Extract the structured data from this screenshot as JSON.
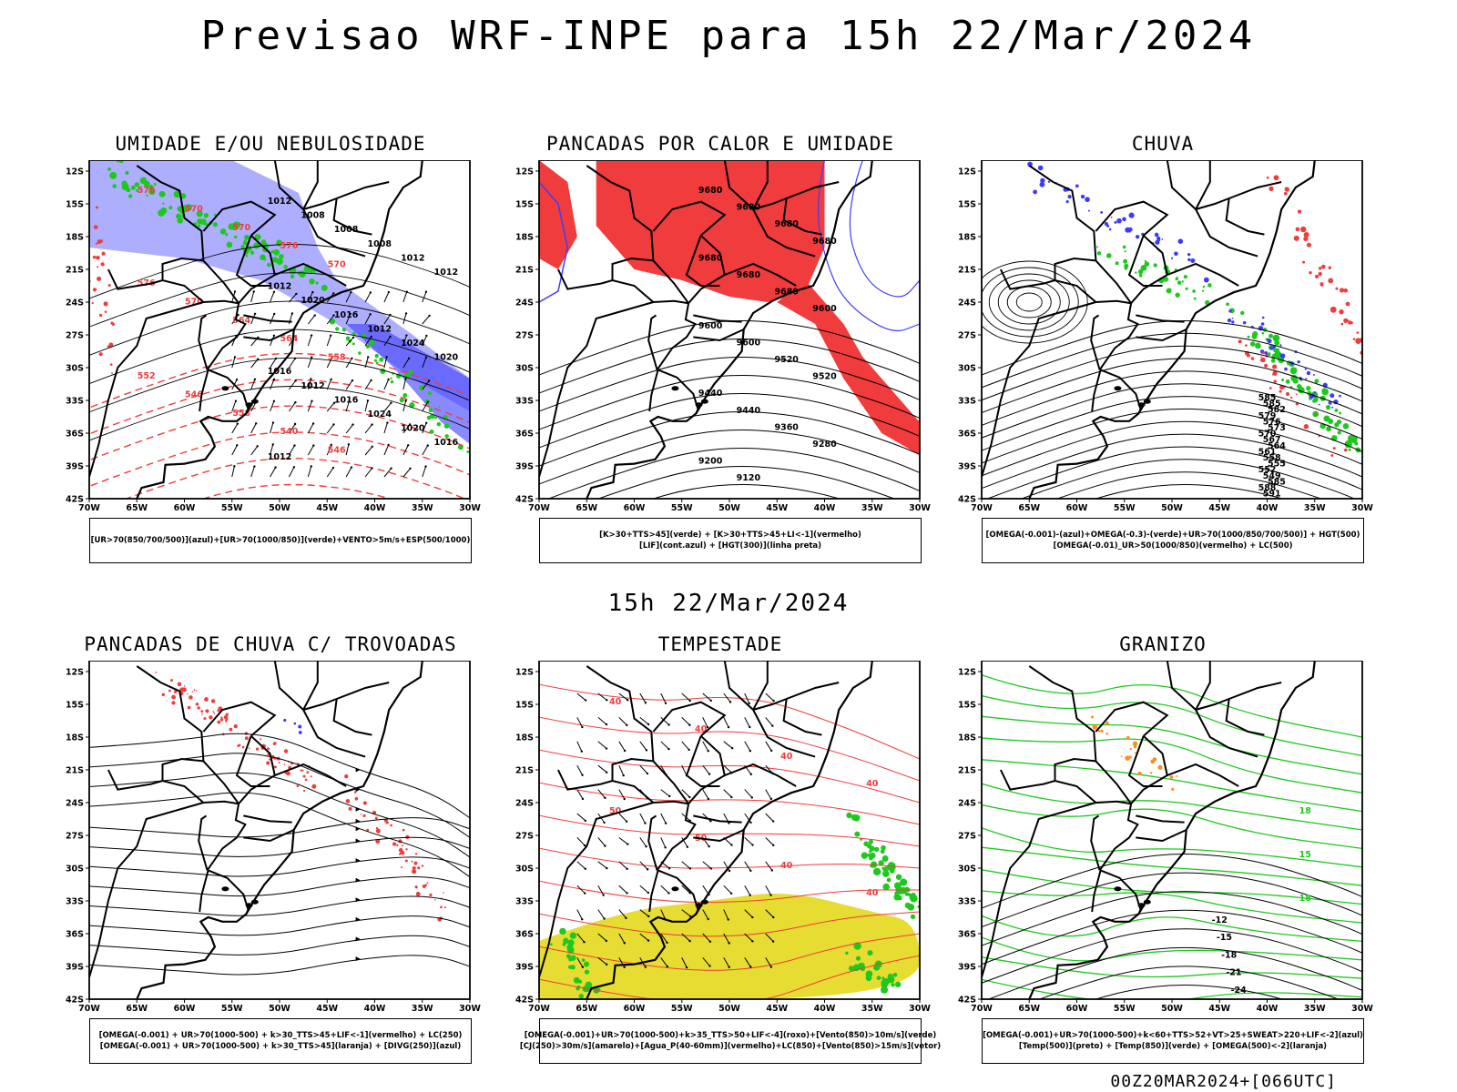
{
  "header": {
    "title": "Previsao WRF-INPE  para 15h 22/Mar/2024"
  },
  "mid_title": "15h 22/Mar/2024",
  "footer": "00Z20MAR2024+[066UTC]",
  "axes": {
    "lat": [
      "12S",
      "15S",
      "18S",
      "21S",
      "24S",
      "27S",
      "30S",
      "33S",
      "36S",
      "39S",
      "42S"
    ],
    "lon": [
      "70W",
      "65W",
      "60W",
      "55W",
      "50W",
      "45W",
      "40W",
      "35W",
      "30W"
    ]
  },
  "colors": {
    "red": "#f03c3c",
    "blue": "#3c3cff",
    "lavender": "#a0a0ff",
    "green": "#1ec81e",
    "yellow": "#e6dc32",
    "orange": "#ff8c1e",
    "dark_green": "#2e6e5a"
  },
  "panels": [
    {
      "title": "UMIDADE E/OU NEBULOSIDADE",
      "legend": [
        "[UR>70(850/700/500)](azul)+[UR>70(1000/850)](verde)+VENTO>5m/s+ESP(500/1000)"
      ],
      "contour_labels": [
        "1012",
        "1008",
        "1008",
        "1008",
        "1012",
        "1012",
        "1012",
        "1020",
        "1016",
        "1012",
        "1024",
        "1020",
        "1016",
        "1012",
        "1016",
        "1024",
        "1020",
        "1016",
        "1012"
      ],
      "red_labels": [
        "576",
        "570",
        "570",
        "576",
        "570",
        "576",
        "570",
        "564",
        "564",
        "558",
        "552",
        "546",
        "558",
        "540",
        "546"
      ]
    },
    {
      "title": "PANCADAS POR CALOR E UMIDADE",
      "legend": [
        "[K>30+TTS>45](verde) + [K>30+TTS>45+LI<-1](vermelho)",
        "[LIF](cont.azul) + [HGT(300)](linha preta)"
      ],
      "contour_labels": [
        "9680",
        "9680",
        "9680",
        "9680",
        "9680",
        "9680",
        "9680",
        "9600",
        "9600",
        "9600",
        "9520",
        "9520",
        "9440",
        "9440",
        "9360",
        "9280",
        "9200",
        "9120"
      ]
    },
    {
      "title": "CHUVA",
      "legend": [
        "[OMEGA(-0.001)-(azul)+OMEGA(-0.3)-(verde)+UR>70(1000/850/700/500)] + HGT(500)",
        "[OMEGA(-0.01)_UR>50(1000/850)(vermelho) + LC(500)"
      ],
      "contour_labels": [
        "585",
        "585",
        "582",
        "579",
        "576",
        "573",
        "570",
        "567",
        "564",
        "561",
        "558",
        "555",
        "552",
        "549",
        "585",
        "588",
        "591"
      ]
    },
    {
      "title": "PANCADAS DE CHUVA C/ TROVOADAS",
      "legend": [
        "[OMEGA(-0.001) + UR>70(1000-500) + k>30_TTS>45+LIF<-1](vermelho) + LC(250)",
        "[OMEGA(-0.001) + UR>70(1000-500) + k>30_TTS>45](laranja) + [DIVG(250)](azul)"
      ]
    },
    {
      "title": "TEMPESTADE",
      "legend": [
        "[OMEGA(-0.001)+UR>70(1000-500)+k>35_TTS>50+LIF<-4](roxo)+[Vento(850)>10m/s](verde)",
        "[CJ(250)>30m/s](amarelo)+[Agua_P(40-60mm)](vermelho)+LC(850)+[Vento(850)>15m/s](vetor)"
      ],
      "contour_labels": [
        "40",
        "40",
        "40",
        "40",
        "50",
        "50",
        "40",
        "40"
      ]
    },
    {
      "title": "GRANIZO",
      "legend": [
        "[OMEGA(-0.001)+UR>70(1000-500)+k<60+TTS>52+VT>25+SWEAT>220+LIF<-2](azul)",
        "[Temp(500)](preto) + [Temp(850)](verde) + [OMEGA(500)<-2](laranja)"
      ],
      "contour_labels": [
        "-12",
        "-15",
        "-18",
        "-21",
        "-24",
        "18",
        "15",
        "18"
      ]
    }
  ]
}
